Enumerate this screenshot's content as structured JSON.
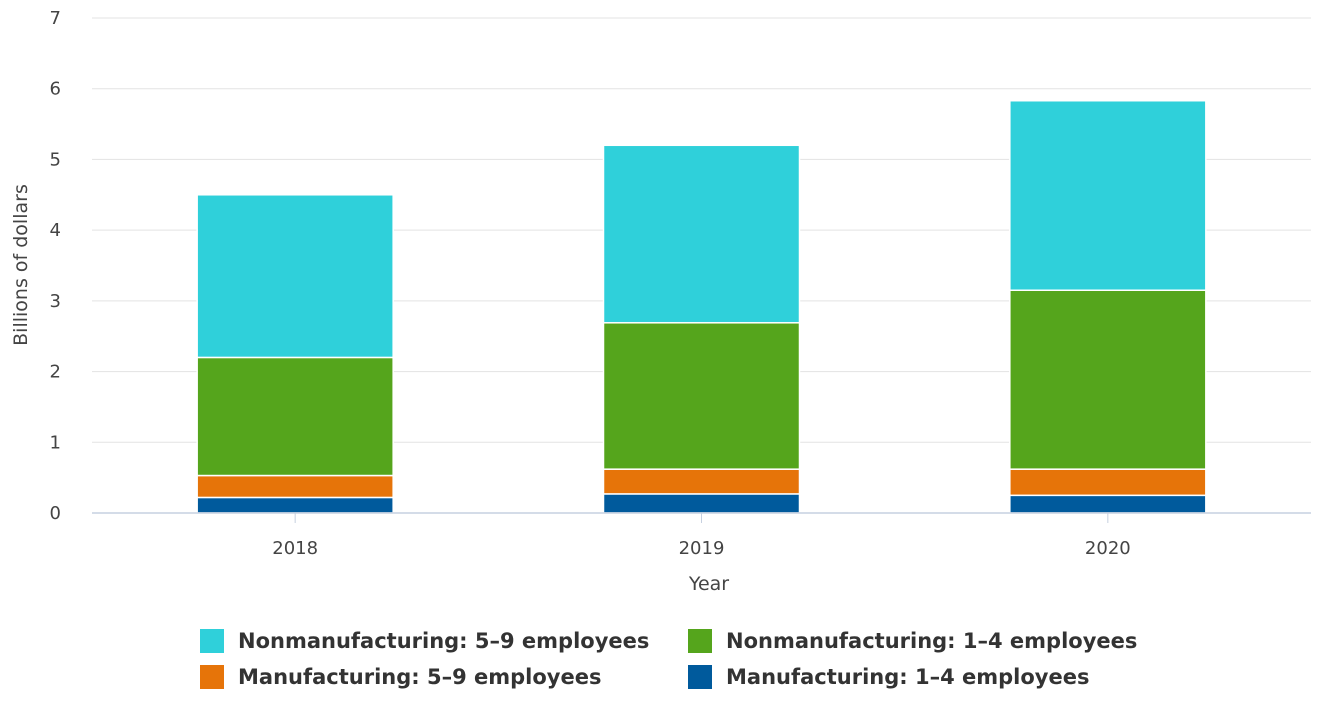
{
  "chart_data": {
    "type": "bar",
    "stacked": true,
    "title": "",
    "xlabel": "Year",
    "ylabel": "Billions of dollars",
    "categories": [
      "2018",
      "2019",
      "2020"
    ],
    "ylim": [
      0,
      7
    ],
    "yticks": [
      0,
      1,
      2,
      3,
      4,
      5,
      6,
      7
    ],
    "grid": true,
    "legend_position": "bottom",
    "series": [
      {
        "name": "Manufacturing: 1–4 employees",
        "color": "#005a9c",
        "values": [
          0.22,
          0.27,
          0.25
        ]
      },
      {
        "name": "Manufacturing: 5–9 employees",
        "color": "#e67409",
        "values": [
          0.31,
          0.35,
          0.37
        ]
      },
      {
        "name": "Nonmanufacturing: 1–4 employees",
        "color": "#55a51c",
        "values": [
          1.67,
          2.07,
          2.53
        ]
      },
      {
        "name": "Nonmanufacturing: 5–9 employees",
        "color": "#2fd0da",
        "values": [
          2.3,
          2.51,
          2.68
        ]
      }
    ],
    "legend_order": [
      "Nonmanufacturing: 5–9 employees",
      "Nonmanufacturing: 1–4 employees",
      "Manufacturing: 5–9 employees",
      "Manufacturing: 1–4 employees"
    ]
  }
}
